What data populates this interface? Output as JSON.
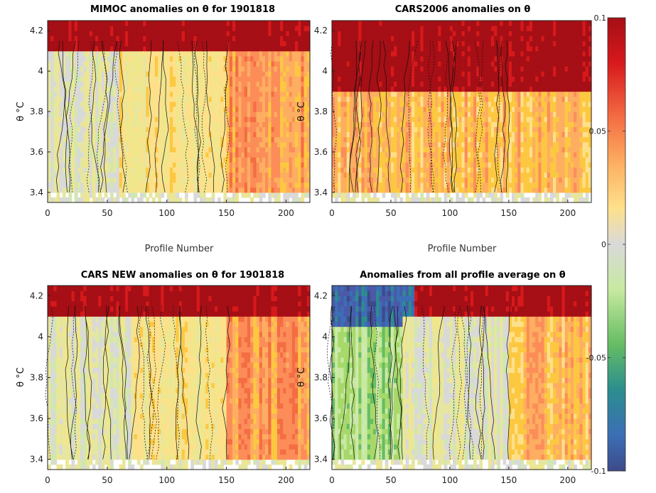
{
  "chart_data": [
    {
      "type": "heatmap",
      "title": "MIMOC anomalies on θ  for 1901818",
      "xlabel": "Profile Number",
      "ylabel": "θ °C",
      "xlim": [
        0,
        220
      ],
      "ylim": [
        3.35,
        4.25
      ],
      "xticks": [
        "0",
        "50",
        "100",
        "150",
        "200"
      ],
      "yticks": [
        "3.4",
        "3.6",
        "3.8",
        "4",
        "4.2"
      ],
      "contours": true,
      "regions": [
        {
          "x": [
            0,
            220
          ],
          "y": [
            4.1,
            4.25
          ],
          "value": 0.1,
          "note": "strong positive band at top"
        },
        {
          "x": [
            0,
            60
          ],
          "y": [
            3.4,
            4.1
          ],
          "value": 0.0
        },
        {
          "x": [
            60,
            150
          ],
          "y": [
            3.4,
            4.1
          ],
          "value": 0.02
        },
        {
          "x": [
            150,
            220
          ],
          "y": [
            3.4,
            4.1
          ],
          "value": 0.05
        }
      ]
    },
    {
      "type": "heatmap",
      "title": "CARS2006 anomalies on θ",
      "xlabel": "Profile Number",
      "ylabel": "θ °C",
      "xlim": [
        0,
        220
      ],
      "ylim": [
        3.35,
        4.25
      ],
      "xticks": [
        "0",
        "50",
        "100",
        "150",
        "200"
      ],
      "yticks": [
        "3.4",
        "3.6",
        "3.8",
        "4",
        "4.2"
      ],
      "contours": true,
      "regions": [
        {
          "x": [
            0,
            220
          ],
          "y": [
            3.9,
            4.25
          ],
          "value": 0.1
        },
        {
          "x": [
            0,
            60
          ],
          "y": [
            3.4,
            3.7
          ],
          "value": 0.0
        },
        {
          "x": [
            0,
            220
          ],
          "y": [
            3.4,
            3.9
          ],
          "value": 0.04
        }
      ]
    },
    {
      "type": "heatmap",
      "title": "CARS NEW anomalies on θ for 1901818",
      "xlabel": "",
      "ylabel": "θ °C",
      "xlim": [
        0,
        220
      ],
      "ylim": [
        3.35,
        4.25
      ],
      "xticks": [
        "0",
        "50",
        "100",
        "150",
        "200"
      ],
      "yticks": [
        "3.4",
        "3.6",
        "3.8",
        "4",
        "4.2"
      ],
      "contours": true,
      "regions": [
        {
          "x": [
            0,
            220
          ],
          "y": [
            4.1,
            4.25
          ],
          "value": 0.1
        },
        {
          "x": [
            0,
            70
          ],
          "y": [
            3.4,
            4.1
          ],
          "value": 0.0
        },
        {
          "x": [
            70,
            150
          ],
          "y": [
            3.4,
            4.1
          ],
          "value": 0.02
        },
        {
          "x": [
            150,
            220
          ],
          "y": [
            3.4,
            4.1
          ],
          "value": 0.05
        }
      ]
    },
    {
      "type": "heatmap",
      "title": "Anomalies from all profile average on θ",
      "xlabel": "",
      "ylabel": "θ °C",
      "xlim": [
        0,
        220
      ],
      "ylim": [
        3.35,
        4.25
      ],
      "xticks": [
        "0",
        "50",
        "100",
        "150",
        "200"
      ],
      "yticks": [
        "3.4",
        "3.6",
        "3.8",
        "4",
        "4.2"
      ],
      "contours": true,
      "regions": [
        {
          "x": [
            0,
            70
          ],
          "y": [
            4.05,
            4.25
          ],
          "value": -0.08
        },
        {
          "x": [
            70,
            220
          ],
          "y": [
            4.1,
            4.25
          ],
          "value": 0.1
        },
        {
          "x": [
            0,
            60
          ],
          "y": [
            3.4,
            4.05
          ],
          "value": -0.03
        },
        {
          "x": [
            60,
            150
          ],
          "y": [
            3.4,
            4.1
          ],
          "value": 0.0
        },
        {
          "x": [
            150,
            220
          ],
          "y": [
            3.4,
            4.1
          ],
          "value": 0.04
        }
      ]
    }
  ],
  "colorbar": {
    "min": -0.1,
    "max": 0.1,
    "tick_values": [
      0.1,
      0.05,
      0,
      -0.05,
      -0.1
    ],
    "tick_labels": [
      "0.1",
      "0.05",
      "0",
      "-0.05",
      "-0.1"
    ],
    "colors": [
      "#a50f15",
      "#d7191c",
      "#e34a33",
      "#f46d43",
      "#fc8d59",
      "#fdae61",
      "#fdc841",
      "#fee08b",
      "#f0e68c",
      "#e6e6a0",
      "#d9d9d9",
      "#d0e8b0",
      "#c7e9a0",
      "#a6d96a",
      "#66bd63",
      "#3aa57a",
      "#2b8e8e",
      "#3b6fb6",
      "#4a5aa8",
      "#3d4a8a"
    ]
  }
}
